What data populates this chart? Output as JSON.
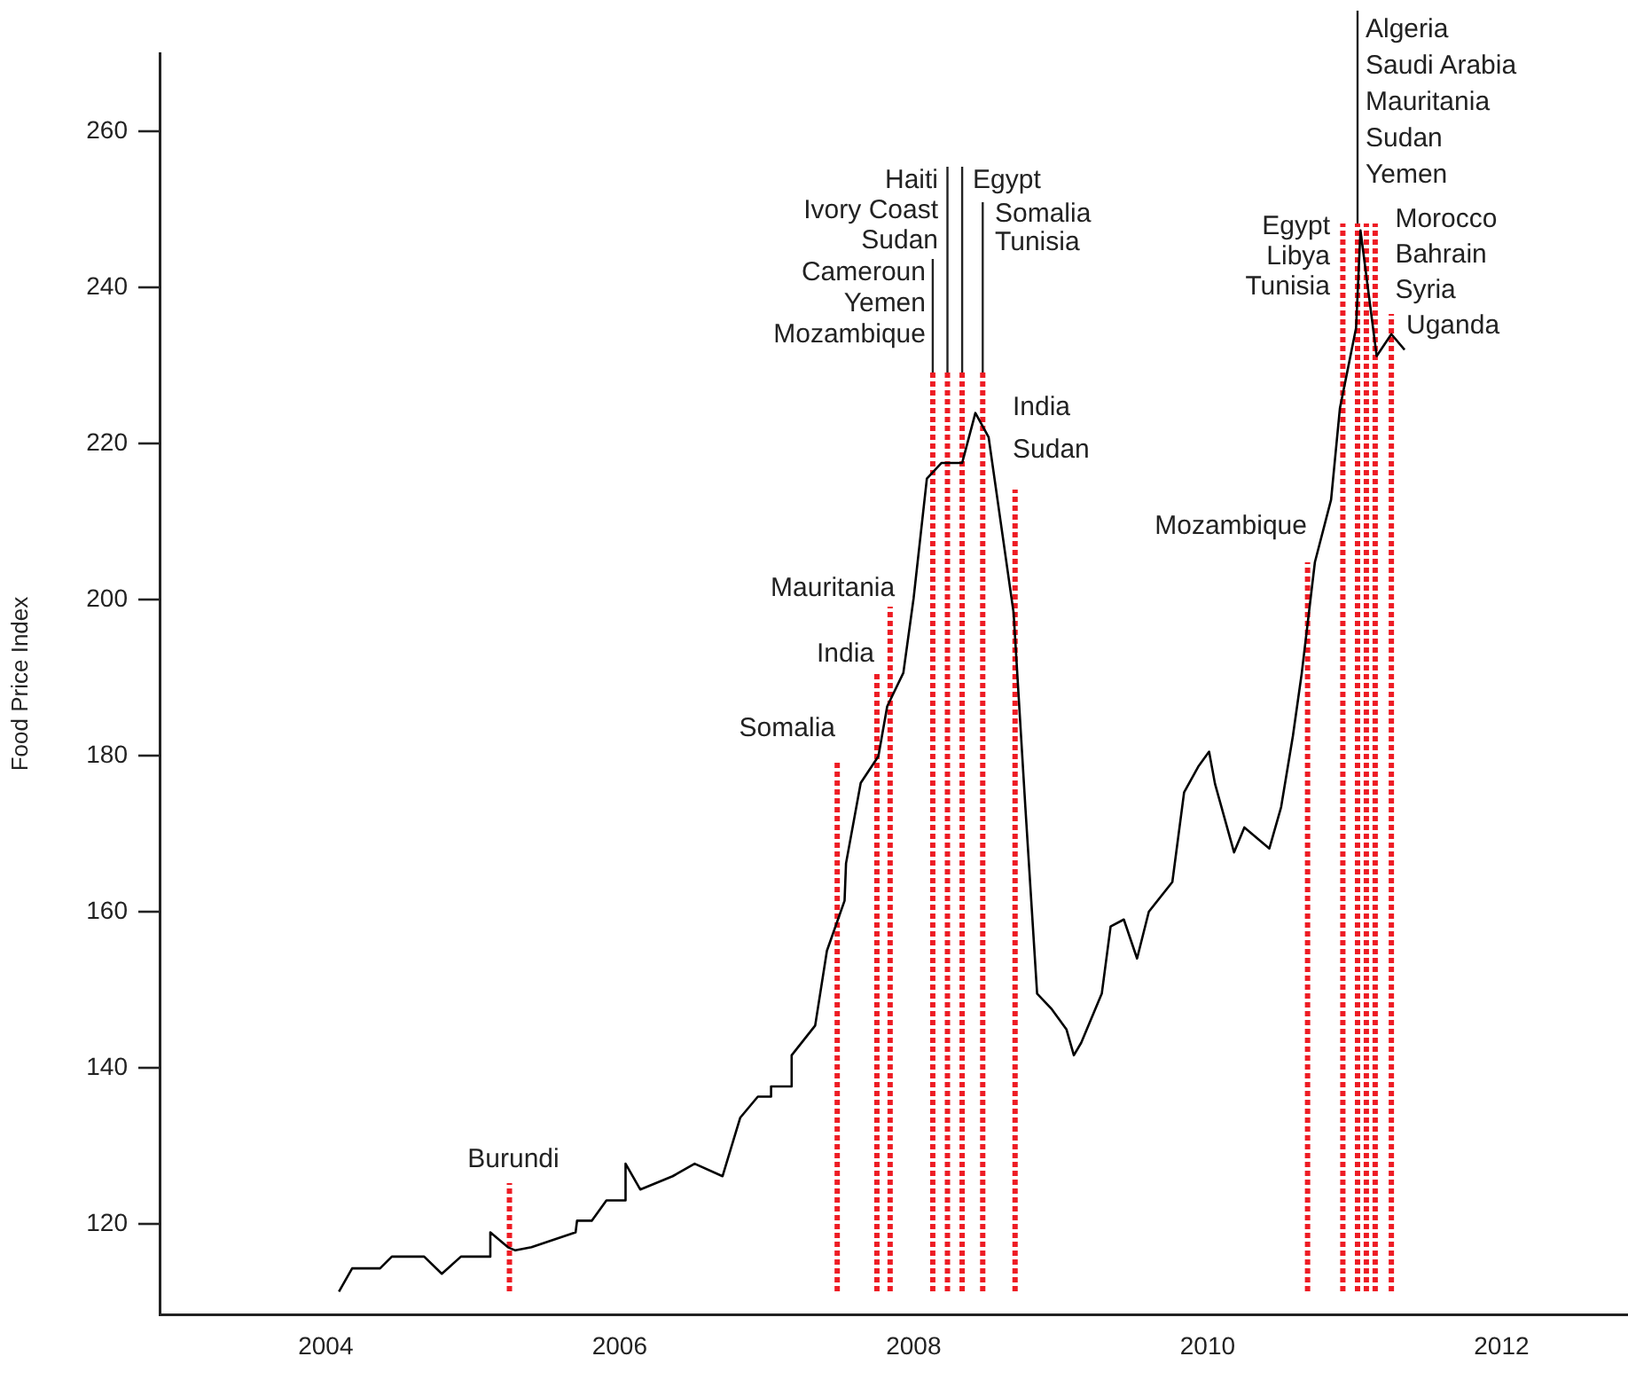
{
  "chart_data": {
    "type": "line",
    "ylabel": "Food Price Index",
    "xlim": [
      2002.87,
      2012.86
    ],
    "xticks": [
      2004,
      2006,
      2008,
      2010,
      2012
    ],
    "ylim": [
      108.4,
      270
    ],
    "yticks": [
      120,
      140,
      160,
      180,
      200,
      220,
      240,
      260
    ],
    "marker": "none",
    "legend": false,
    "series": [
      {
        "color": "#000000",
        "x": [
          2004.09,
          2004.18,
          2004.37,
          2004.45,
          2004.67,
          2004.79,
          2004.92,
          2005.12,
          2005.12,
          2005.24,
          2005.29,
          2005.4,
          2005.7,
          2005.71,
          2005.81,
          2005.91,
          2006.04,
          2006.04,
          2006.14,
          2006.36,
          2006.51,
          2006.7,
          2006.82,
          2006.94,
          2007.03,
          2007.03,
          2007.17,
          2007.17,
          2007.33,
          2007.41,
          2007.53,
          2007.54,
          2007.64,
          2007.76,
          2007.82,
          2007.93,
          2008.0,
          2008.09,
          2008.19,
          2008.33,
          2008.42,
          2008.51,
          2008.68,
          2008.76,
          2008.84,
          2008.94,
          2009.04,
          2009.09,
          2009.14,
          2009.28,
          2009.34,
          2009.43,
          2009.52,
          2009.6,
          2009.76,
          2009.84,
          2009.94,
          2010.01,
          2010.05,
          2010.18,
          2010.25,
          2010.42,
          2010.5,
          2010.58,
          2010.64,
          2010.73,
          2010.84,
          2010.9,
          2011.01,
          2011.04,
          2011.15,
          2011.25,
          2011.34
        ],
        "values": [
          111.3,
          114.3,
          114.3,
          115.8,
          115.8,
          113.6,
          115.8,
          115.8,
          118.9,
          117.0,
          116.6,
          117.0,
          118.9,
          120.4,
          120.4,
          123.0,
          123.0,
          127.7,
          124.4,
          126.1,
          127.7,
          126.1,
          133.6,
          136.3,
          136.3,
          137.6,
          137.6,
          141.6,
          145.4,
          155.0,
          161.4,
          166.2,
          176.5,
          179.9,
          186.3,
          190.6,
          200.2,
          215.5,
          217.5,
          217.5,
          223.9,
          220.8,
          198.3,
          173.4,
          149.5,
          147.5,
          144.9,
          141.6,
          143.2,
          149.5,
          158.1,
          159.0,
          154.0,
          160.0,
          163.8,
          175.3,
          178.7,
          180.5,
          176.4,
          167.6,
          170.8,
          168.1,
          173.4,
          182.5,
          190.5,
          204.8,
          212.8,
          224.5,
          234.8,
          247.3,
          231.2,
          234.0,
          232.0
        ]
      }
    ],
    "ref_lines": [
      {
        "axis": "x",
        "value": 2005.25,
        "label": "Burundi",
        "color": "#ee1c24",
        "line_style": "dotted"
      },
      {
        "axis": "x",
        "value": 2007.48,
        "label": "Somalia",
        "color": "#ee1c24",
        "line_style": "dotted"
      },
      {
        "axis": "x",
        "value": 2007.75,
        "label": "India",
        "color": "#ee1c24",
        "line_style": "dotted"
      },
      {
        "axis": "x",
        "value": 2007.84,
        "label": "Mauritania",
        "color": "#ee1c24",
        "line_style": "dotted"
      },
      {
        "axis": "x",
        "value": 2008.13,
        "label": "Cameroun\nYemen\nMozambique",
        "color": "#ee1c24",
        "line_style": "dotted"
      },
      {
        "axis": "x",
        "value": 2008.23,
        "label": "Haiti\nIvory Coast\nSudan",
        "color": "#ee1c24",
        "line_style": "dotted"
      },
      {
        "axis": "x",
        "value": 2008.33,
        "label": "Egypt",
        "color": "#ee1c24",
        "line_style": "dotted"
      },
      {
        "axis": "x",
        "value": 2008.47,
        "label": "Somalia\nTunisia",
        "color": "#ee1c24",
        "line_style": "dotted"
      },
      {
        "axis": "x",
        "value": 2008.69,
        "label": "India\nSudan",
        "color": "#ee1c24",
        "line_style": "dotted"
      },
      {
        "axis": "x",
        "value": 2010.68,
        "label": "Mozambique",
        "color": "#ee1c24",
        "line_style": "dotted"
      },
      {
        "axis": "x",
        "value": 2010.92,
        "label": "Egypt\nLibya\nTunisia",
        "color": "#ee1c24",
        "line_style": "dotted"
      },
      {
        "axis": "x",
        "value": 2011.02,
        "label": "Algeria\nSaudi Arabia\nMauritania\nSudan\nYemen",
        "color": "#ee1c24",
        "line_style": "dotted"
      },
      {
        "axis": "x",
        "value": 2011.08,
        "color": "#ee1c24",
        "line_style": "dotted"
      },
      {
        "axis": "x",
        "value": 2011.14,
        "label": "Morocco\nBahrain\nSyria",
        "color": "#ee1c24",
        "line_style": "dotted"
      },
      {
        "axis": "x",
        "value": 2011.25,
        "label": "Uganda",
        "color": "#ee1c24",
        "line_style": "dotted"
      }
    ]
  }
}
